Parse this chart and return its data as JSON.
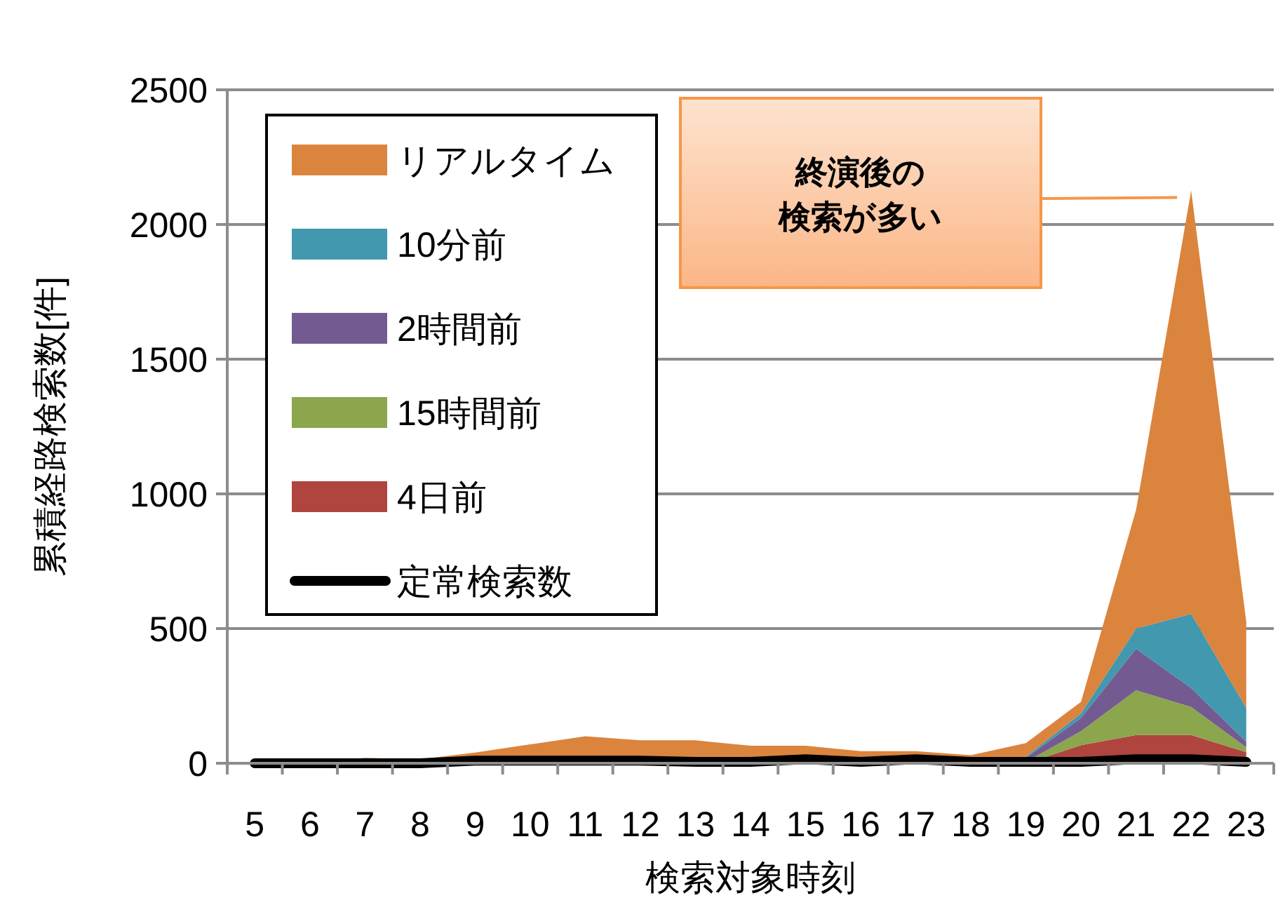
{
  "chart_data": {
    "type": "area",
    "stacked": true,
    "xlabel": "検索対象時刻",
    "ylabel": "累積経路検索数[件]",
    "categories": [
      "5",
      "6",
      "7",
      "8",
      "9",
      "10",
      "11",
      "12",
      "13",
      "14",
      "15",
      "16",
      "17",
      "18",
      "19",
      "20",
      "21",
      "22",
      "23"
    ],
    "series": [
      {
        "name": "4日前",
        "color": "#b0443f",
        "values": [
          0,
          0,
          0,
          0,
          0,
          0,
          0,
          0,
          0,
          0,
          0,
          0,
          0,
          0,
          0,
          67,
          105,
          105,
          41
        ]
      },
      {
        "name": "15時間前",
        "color": "#8ba64d",
        "values": [
          0,
          0,
          0,
          0,
          0,
          0,
          0,
          0,
          0,
          0,
          0,
          0,
          0,
          0,
          5,
          52,
          166,
          104,
          18
        ]
      },
      {
        "name": "2時間前",
        "color": "#735b91",
        "values": [
          0,
          0,
          0,
          0,
          0,
          0,
          0,
          0,
          0,
          0,
          0,
          0,
          0,
          0,
          15,
          49,
          154,
          70,
          21
        ]
      },
      {
        "name": "10分前",
        "color": "#4298ae",
        "values": [
          0,
          0,
          0,
          0,
          10,
          10,
          10,
          10,
          5,
          0,
          0,
          0,
          0,
          0,
          5,
          17,
          75,
          276,
          126
        ]
      },
      {
        "name": "リアルタイム",
        "color": "#db843d",
        "values": [
          0,
          5,
          20,
          15,
          30,
          60,
          90,
          75,
          80,
          65,
          65,
          45,
          45,
          30,
          50,
          43,
          441,
          1571,
          320
        ]
      },
      {
        "name": "定常検索数",
        "type": "line",
        "color": "#000000",
        "values": [
          0,
          0,
          0,
          0,
          10,
          10,
          10,
          10,
          5,
          5,
          15,
          5,
          15,
          5,
          5,
          5,
          15,
          15,
          5
        ]
      }
    ],
    "ylim": [
      0,
      2500
    ],
    "yticks": [
      0,
      500,
      1000,
      1500,
      2000,
      2500
    ],
    "grid": "y",
    "legend": "top left",
    "annotations": [
      "終演後の検索が多い"
    ]
  }
}
